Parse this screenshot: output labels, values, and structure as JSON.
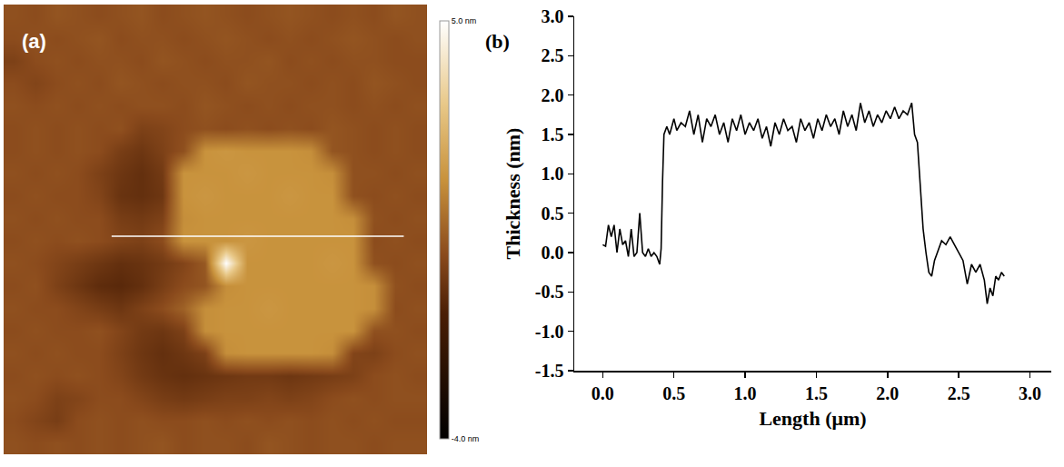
{
  "chart_data": [
    {
      "panel": "(a)",
      "type": "heatmap",
      "tick_labels": false,
      "zlim": [
        -4,
        5
      ],
      "colorbar_ticks": [
        {
          "value": 5,
          "label": "5.0 nm"
        },
        {
          "value": -4,
          "label": "-4.0 nm"
        }
      ],
      "profile_line": {
        "x": [
          4.6,
          18.4
        ],
        "y": 9.8
      },
      "z": [
        [
          0.1,
          0,
          0.2,
          0.1,
          0,
          0.1,
          0.2,
          0,
          0.1,
          0.2,
          0.1,
          0,
          0.1,
          0.2,
          0.1,
          0,
          0.1,
          0,
          0.2,
          0.1
        ],
        [
          0,
          0.1,
          0,
          0.1,
          0.2,
          0,
          0.1,
          0.1,
          0,
          0.1,
          0.2,
          0.1,
          0,
          0.1,
          0,
          0.1,
          0.2,
          0.1,
          0,
          0.1
        ],
        [
          -0.3,
          0,
          0.1,
          0,
          0.1,
          0.1,
          0,
          0.2,
          0.1,
          0,
          0.1,
          0.1,
          0.2,
          0,
          0.1,
          0,
          0.1,
          0.1,
          0,
          0
        ],
        [
          0,
          -0.2,
          0,
          0.1,
          0,
          0.2,
          0.1,
          0,
          0.1,
          0.1,
          0,
          0.2,
          0.1,
          0.1,
          0,
          0.1,
          0,
          0.2,
          0.1,
          0
        ],
        [
          0.1,
          0,
          0.1,
          0,
          0.1,
          0,
          0.1,
          0.1,
          0,
          0.2,
          0.1,
          0,
          0.1,
          0,
          0.1,
          0.1,
          0,
          0.1,
          0,
          0.1
        ],
        [
          0,
          0.1,
          0,
          0.1,
          0,
          0.1,
          -0.3,
          -0.2,
          0,
          0.1,
          0,
          0.1,
          0,
          0.1,
          0,
          0.2,
          0.1,
          0,
          0.1,
          0
        ],
        [
          0,
          0.1,
          0,
          0.1,
          0,
          -0.4,
          -0.6,
          -0.3,
          0.1,
          1.6,
          1.7,
          1.6,
          1.6,
          1.6,
          1.5,
          0.2,
          0.1,
          0,
          0.1,
          0
        ],
        [
          0.1,
          0,
          0.1,
          0,
          -0.3,
          -0.6,
          -0.8,
          -0.5,
          1.6,
          1.6,
          1.6,
          1.7,
          1.6,
          1.6,
          1.6,
          1.5,
          0.1,
          0.1,
          0,
          0.1
        ],
        [
          0,
          0.1,
          0,
          0,
          -0.2,
          -0.7,
          -0.8,
          -0.6,
          1.6,
          1.7,
          1.6,
          1.6,
          1.6,
          1.7,
          1.6,
          1.6,
          0.1,
          0,
          0.1,
          0
        ],
        [
          0.1,
          0,
          0.1,
          0,
          0,
          -0.4,
          -0.5,
          -0.3,
          1.5,
          1.6,
          1.6,
          1.6,
          1.6,
          1.6,
          1.6,
          1.6,
          1.5,
          0.1,
          0,
          0.1
        ],
        [
          0,
          0.1,
          0,
          0.1,
          0,
          -0.2,
          -0.3,
          0,
          1.6,
          1.6,
          1.6,
          1.7,
          1.6,
          1.6,
          1.6,
          1.6,
          1.6,
          0,
          0.1,
          0
        ],
        [
          0.1,
          0,
          -0.2,
          -0.4,
          -0.6,
          -0.8,
          -0.7,
          -0.5,
          -0.2,
          0.3,
          5.0,
          1.6,
          1.6,
          1.6,
          1.6,
          1.7,
          1.6,
          0.1,
          0,
          0.1
        ],
        [
          0,
          0.1,
          -0.3,
          -0.6,
          -0.9,
          -1.0,
          -0.8,
          -0.4,
          0,
          0.2,
          1.5,
          1.6,
          1.6,
          1.6,
          1.6,
          1.6,
          1.6,
          1.5,
          0.1,
          0
        ],
        [
          0.1,
          0,
          0,
          -0.2,
          -0.4,
          -0.6,
          -0.3,
          0,
          0.5,
          1.5,
          1.6,
          1.6,
          1.7,
          1.6,
          1.6,
          1.6,
          1.6,
          1.5,
          0,
          0.1
        ],
        [
          0,
          0.1,
          0,
          0,
          0.1,
          -0.2,
          -0.5,
          -0.6,
          -0.3,
          1.5,
          1.6,
          1.6,
          1.6,
          1.6,
          1.6,
          1.6,
          1.6,
          0.1,
          0.1,
          0
        ],
        [
          0.1,
          0,
          0.1,
          0,
          0,
          -0.3,
          -0.6,
          -0.8,
          -0.6,
          -0.3,
          1.5,
          1.6,
          1.6,
          1.6,
          1.6,
          1.5,
          -0.2,
          -0.3,
          0,
          0.1
        ],
        [
          0,
          0.1,
          0,
          0.1,
          0,
          -0.2,
          -0.5,
          -0.7,
          -0.8,
          -0.7,
          -0.6,
          -0.5,
          -0.5,
          -0.6,
          -0.5,
          -0.4,
          -0.3,
          0,
          0.1,
          0
        ],
        [
          0.1,
          0,
          -0.3,
          -0.2,
          0,
          0,
          -0.2,
          -0.4,
          -0.5,
          -0.4,
          -0.3,
          -0.3,
          -0.2,
          -0.3,
          -0.2,
          0,
          0.1,
          0,
          0.1,
          0.1
        ],
        [
          0,
          -0.2,
          -0.4,
          0,
          0.1,
          0,
          0.1,
          0,
          0,
          0.1,
          0,
          0.1,
          0,
          0.1,
          0,
          0.1,
          0,
          0.1,
          0,
          0
        ],
        [
          0.1,
          0,
          0.1,
          0,
          0.1,
          0,
          0.1,
          0.2,
          0,
          0.1,
          0.1,
          0,
          0.2,
          0.1,
          0,
          0.1,
          0.1,
          0,
          0.1,
          0.1
        ]
      ]
    },
    {
      "panel": "(b)",
      "type": "line",
      "color": "#000000",
      "grid": false,
      "xlabel": "Length (μm)",
      "ylabel": "Thickness (nm)",
      "xlim": [
        -0.2,
        3.15
      ],
      "ylim": [
        -1.5,
        3.0
      ],
      "xticks": [
        {
          "value": 0,
          "label": "0.0"
        },
        0.5,
        {
          "value": 1,
          "label": "1.0"
        },
        1.5,
        {
          "value": 2,
          "label": "2.0"
        },
        2.5,
        {
          "value": 3,
          "label": "3.0"
        }
      ],
      "yticks": [
        -1.5,
        {
          "value": -1,
          "label": "-1.0"
        },
        -0.5,
        {
          "value": 0,
          "label": "0.0"
        },
        0.5,
        {
          "value": 1,
          "label": "1.0"
        },
        1.5,
        {
          "value": 2,
          "label": "2.0"
        },
        2.5,
        {
          "value": 3,
          "label": "3.0"
        }
      ],
      "x": [
        0,
        0.02,
        0.04,
        0.06,
        0.08,
        0.1,
        0.12,
        0.14,
        0.16,
        0.18,
        0.2,
        0.22,
        0.24,
        0.26,
        0.28,
        0.3,
        0.32,
        0.34,
        0.36,
        0.38,
        0.4,
        0.41,
        0.42,
        0.43,
        0.45,
        0.47,
        0.5,
        0.52,
        0.55,
        0.58,
        0.61,
        0.64,
        0.67,
        0.7,
        0.73,
        0.76,
        0.79,
        0.82,
        0.85,
        0.88,
        0.91,
        0.94,
        0.97,
        1.0,
        1.03,
        1.06,
        1.09,
        1.12,
        1.15,
        1.18,
        1.21,
        1.24,
        1.27,
        1.3,
        1.33,
        1.36,
        1.39,
        1.42,
        1.45,
        1.48,
        1.51,
        1.54,
        1.57,
        1.6,
        1.63,
        1.66,
        1.69,
        1.72,
        1.75,
        1.78,
        1.81,
        1.84,
        1.87,
        1.9,
        1.93,
        1.96,
        1.99,
        2.02,
        2.05,
        2.08,
        2.11,
        2.14,
        2.17,
        2.19,
        2.21,
        2.23,
        2.25,
        2.27,
        2.29,
        2.31,
        2.33,
        2.35,
        2.38,
        2.41,
        2.44,
        2.47,
        2.5,
        2.53,
        2.56,
        2.59,
        2.62,
        2.65,
        2.68,
        2.7,
        2.72,
        2.74,
        2.76,
        2.78,
        2.8,
        2.82
      ],
      "values": [
        0.1,
        0.08,
        0.35,
        0.2,
        0.35,
        0.0,
        0.3,
        0.1,
        0.15,
        -0.05,
        0.3,
        -0.05,
        0.0,
        0.5,
        0.0,
        -0.05,
        0.05,
        -0.05,
        0.0,
        -0.05,
        -0.15,
        0.05,
        0.9,
        1.5,
        1.6,
        1.5,
        1.7,
        1.55,
        1.65,
        1.6,
        1.8,
        1.5,
        1.75,
        1.4,
        1.7,
        1.6,
        1.75,
        1.5,
        1.65,
        1.4,
        1.7,
        1.55,
        1.75,
        1.5,
        1.65,
        1.55,
        1.7,
        1.45,
        1.6,
        1.35,
        1.65,
        1.5,
        1.7,
        1.55,
        1.6,
        1.4,
        1.7,
        1.55,
        1.65,
        1.45,
        1.7,
        1.55,
        1.75,
        1.6,
        1.7,
        1.5,
        1.8,
        1.6,
        1.75,
        1.55,
        1.9,
        1.65,
        1.8,
        1.6,
        1.75,
        1.65,
        1.8,
        1.7,
        1.85,
        1.7,
        1.8,
        1.75,
        1.9,
        1.5,
        1.4,
        0.9,
        0.3,
        0.0,
        -0.25,
        -0.3,
        -0.1,
        0.0,
        0.15,
        0.1,
        0.2,
        0.1,
        0.0,
        -0.1,
        -0.4,
        -0.15,
        -0.25,
        -0.15,
        -0.35,
        -0.65,
        -0.45,
        -0.55,
        -0.3,
        -0.35,
        -0.25,
        -0.3
      ]
    }
  ]
}
